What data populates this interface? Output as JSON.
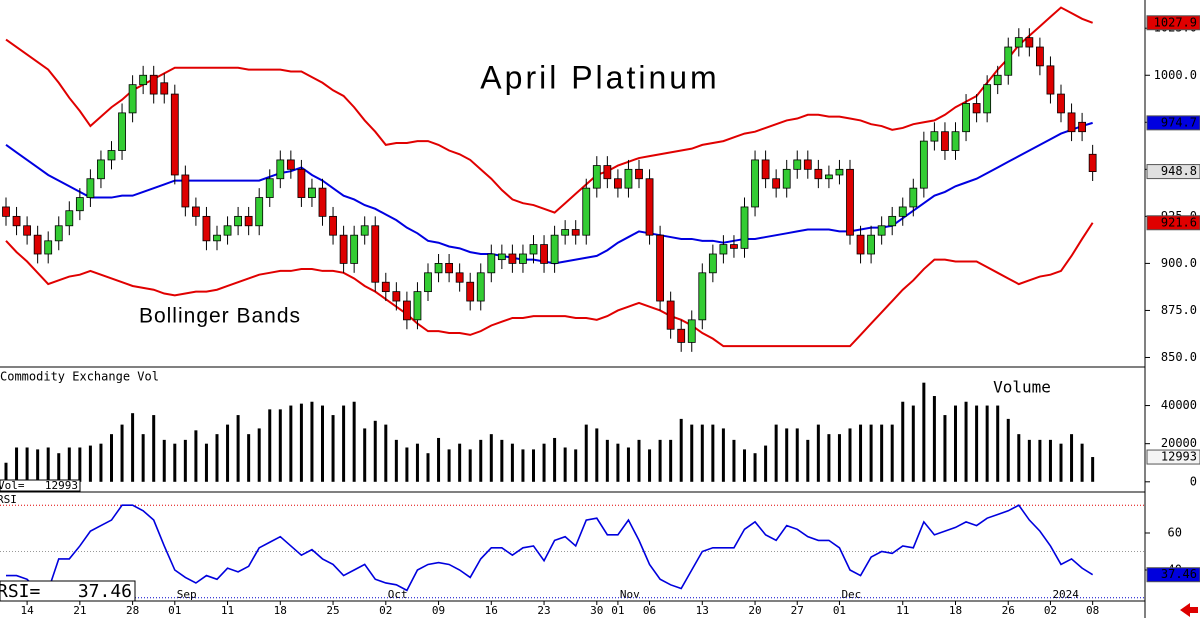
{
  "chart_data": [
    {
      "type": "candlestick",
      "title": "April Platinum",
      "annotation": "Bollinger Bands",
      "categories": [
        null,
        null,
        "14",
        null,
        null,
        null,
        null,
        "21",
        null,
        null,
        null,
        null,
        "28",
        null,
        null,
        null,
        "01",
        null,
        null,
        null,
        null,
        "11",
        null,
        null,
        null,
        null,
        "18",
        null,
        null,
        null,
        null,
        "25",
        null,
        null,
        null,
        null,
        "02",
        null,
        null,
        null,
        null,
        "09",
        null,
        null,
        null,
        null,
        "16",
        null,
        null,
        null,
        null,
        "23",
        null,
        null,
        null,
        null,
        "30",
        null,
        "01",
        null,
        null,
        "06",
        null,
        null,
        null,
        null,
        "13",
        null,
        null,
        null,
        null,
        "20",
        null,
        null,
        null,
        "27",
        null,
        null,
        null,
        "01",
        null,
        null,
        null,
        null,
        null,
        "11",
        null,
        null,
        null,
        null,
        "18",
        null,
        null,
        null,
        null,
        "26",
        null,
        null,
        null,
        "02",
        null,
        null,
        null,
        "08"
      ],
      "month_labels": [
        null,
        null,
        null,
        null,
        null,
        null,
        null,
        null,
        null,
        null,
        null,
        null,
        null,
        null,
        null,
        null,
        "Sep",
        null,
        null,
        null,
        null,
        null,
        null,
        null,
        null,
        null,
        null,
        null,
        null,
        null,
        null,
        null,
        null,
        null,
        null,
        null,
        "Oct",
        null,
        null,
        null,
        null,
        null,
        null,
        null,
        null,
        null,
        null,
        null,
        null,
        null,
        null,
        null,
        null,
        null,
        null,
        null,
        null,
        null,
        "Nov",
        null,
        null,
        null,
        null,
        null,
        null,
        null,
        null,
        null,
        null,
        null,
        null,
        null,
        null,
        null,
        null,
        null,
        null,
        null,
        null,
        "Dec",
        null,
        null,
        null,
        null,
        null,
        null,
        null,
        null,
        null,
        null,
        null,
        null,
        null,
        null,
        null,
        null,
        null,
        null,
        null,
        "2024",
        null,
        null,
        null,
        null
      ],
      "open": [
        930,
        925,
        920,
        915,
        905,
        912,
        920,
        928,
        935,
        945,
        955,
        960,
        980,
        995,
        1000,
        996,
        990,
        947,
        930,
        925,
        912,
        915,
        920,
        925,
        920,
        935,
        945,
        955,
        950,
        935,
        940,
        925,
        915,
        900,
        915,
        920,
        890,
        885,
        880,
        870,
        885,
        895,
        900,
        895,
        890,
        880,
        895,
        902,
        905,
        900,
        905,
        910,
        900,
        915,
        918,
        915,
        940,
        952,
        945,
        940,
        950,
        945,
        915,
        880,
        865,
        858,
        870,
        895,
        905,
        910,
        908,
        930,
        955,
        945,
        940,
        950,
        955,
        950,
        945,
        947,
        950,
        915,
        905,
        915,
        920,
        925,
        930,
        940,
        965,
        970,
        960,
        970,
        985,
        980,
        995,
        1000,
        1015,
        1020,
        1015,
        1005,
        990,
        980,
        975,
        958
      ],
      "high": [
        935,
        930,
        925,
        920,
        917,
        925,
        933,
        940,
        950,
        960,
        965,
        985,
        1000,
        1005,
        1005,
        1001,
        995,
        952,
        935,
        930,
        920,
        925,
        930,
        930,
        940,
        950,
        960,
        960,
        955,
        945,
        945,
        930,
        920,
        920,
        925,
        925,
        895,
        890,
        885,
        890,
        900,
        905,
        905,
        900,
        895,
        900,
        910,
        910,
        910,
        910,
        915,
        915,
        920,
        923,
        923,
        945,
        957,
        957,
        950,
        955,
        955,
        950,
        920,
        885,
        870,
        875,
        900,
        910,
        915,
        915,
        935,
        960,
        960,
        950,
        955,
        960,
        960,
        955,
        952,
        955,
        955,
        920,
        920,
        925,
        930,
        935,
        945,
        970,
        975,
        975,
        975,
        990,
        990,
        1000,
        1005,
        1020,
        1025,
        1025,
        1020,
        1010,
        995,
        985,
        980,
        963
      ],
      "low": [
        920,
        915,
        910,
        900,
        900,
        907,
        915,
        923,
        930,
        940,
        950,
        955,
        975,
        990,
        985,
        985,
        942,
        925,
        920,
        907,
        907,
        910,
        915,
        915,
        915,
        930,
        940,
        945,
        930,
        930,
        920,
        910,
        895,
        895,
        910,
        885,
        880,
        875,
        865,
        865,
        880,
        890,
        890,
        885,
        875,
        875,
        890,
        897,
        895,
        895,
        900,
        895,
        895,
        910,
        910,
        910,
        935,
        940,
        935,
        935,
        940,
        910,
        875,
        860,
        853,
        853,
        865,
        890,
        900,
        903,
        903,
        925,
        940,
        935,
        935,
        945,
        945,
        940,
        940,
        942,
        910,
        900,
        900,
        910,
        915,
        920,
        925,
        935,
        960,
        955,
        955,
        965,
        975,
        975,
        990,
        995,
        1010,
        1010,
        1000,
        985,
        975,
        965,
        965,
        943.8
      ],
      "close": [
        925,
        920,
        915,
        905,
        912,
        920,
        928,
        935,
        945,
        955,
        960,
        980,
        995,
        1000,
        990,
        990,
        947,
        930,
        925,
        912,
        915,
        920,
        925,
        920,
        935,
        945,
        955,
        950,
        935,
        940,
        925,
        915,
        900,
        915,
        920,
        890,
        885,
        880,
        870,
        885,
        895,
        900,
        895,
        890,
        880,
        895,
        905,
        905,
        900,
        905,
        910,
        900,
        915,
        918,
        915,
        940,
        952,
        945,
        940,
        950,
        945,
        915,
        880,
        865,
        858,
        870,
        895,
        905,
        910,
        908,
        930,
        955,
        945,
        940,
        950,
        955,
        950,
        945,
        947,
        950,
        915,
        905,
        915,
        920,
        925,
        930,
        940,
        965,
        970,
        960,
        970,
        985,
        980,
        995,
        1000,
        1015,
        1020,
        1015,
        1005,
        990,
        980,
        970,
        970,
        948.8
      ],
      "up_color": "#33cc33",
      "down_color": "#dd0000",
      "close_box_color": "#e0e0e0",
      "bands": [
        {
          "color": "#e00000",
          "values": [
            1019,
            1015,
            1011,
            1007,
            1003,
            996,
            988,
            981,
            973,
            978,
            983,
            987,
            992,
            995,
            998,
            1001,
            1004,
            1004,
            1004,
            1004,
            1004,
            1004,
            1004,
            1003,
            1003,
            1003,
            1003,
            1002,
            1002,
            999,
            996,
            992,
            989,
            983,
            976,
            970,
            963,
            964,
            964,
            965,
            965,
            963,
            960,
            958,
            955,
            950,
            945,
            939,
            934,
            932,
            931,
            929,
            927,
            932,
            937,
            942,
            947,
            949,
            952,
            954,
            956,
            957,
            958,
            959,
            960,
            961,
            963,
            964,
            965,
            967,
            969,
            970,
            972,
            974,
            976,
            977,
            979,
            979,
            978,
            978,
            977,
            976,
            974,
            973,
            971,
            972,
            974,
            975,
            976,
            979,
            983,
            986,
            989,
            996,
            1003,
            1009,
            1016,
            1021,
            1026,
            1031,
            1036,
            1033,
            1030,
            1027.9
          ]
        },
        {
          "color": "#0000e0",
          "values": [
            963,
            959,
            955,
            951,
            947,
            944,
            941,
            938,
            935,
            935,
            935,
            936,
            936,
            938,
            940,
            942,
            944,
            944,
            944,
            944,
            944,
            944,
            944,
            944,
            944,
            946,
            948,
            949,
            951,
            947,
            944,
            940,
            936,
            934,
            931,
            929,
            926,
            923,
            919,
            916,
            912,
            911,
            909,
            908,
            906,
            905,
            905,
            904,
            903,
            902,
            902,
            901,
            900,
            901,
            902,
            903,
            904,
            907,
            911,
            914,
            917,
            916,
            915,
            914,
            913,
            913,
            912,
            912,
            911,
            912,
            913,
            913,
            914,
            915,
            916,
            917,
            918,
            918,
            918,
            917,
            917,
            918,
            919,
            919,
            920,
            924,
            928,
            932,
            936,
            938,
            941,
            943,
            945,
            948,
            951,
            954,
            957,
            960,
            963,
            966,
            969,
            971,
            973,
            974.7
          ]
        },
        {
          "color": "#e00000",
          "values": [
            912,
            906,
            901,
            895,
            889,
            891,
            893,
            894,
            896,
            894,
            892,
            890,
            888,
            887,
            886,
            884,
            883,
            884,
            885,
            885,
            886,
            888,
            890,
            892,
            894,
            895,
            896,
            896,
            897,
            897,
            896,
            896,
            895,
            892,
            888,
            885,
            881,
            877,
            873,
            868,
            864,
            864,
            863,
            863,
            862,
            864,
            867,
            869,
            871,
            871,
            872,
            872,
            872,
            872,
            871,
            871,
            870,
            872,
            875,
            877,
            879,
            877,
            875,
            872,
            870,
            867,
            863,
            860,
            856,
            856,
            856,
            856,
            856,
            856,
            856,
            856,
            856,
            856,
            856,
            856,
            856,
            862,
            868,
            874,
            880,
            886,
            891,
            897,
            902,
            902,
            901,
            901,
            901,
            898,
            895,
            892,
            889,
            891,
            893,
            894,
            896,
            904,
            913,
            921.6
          ]
        }
      ],
      "ylim": [
        846,
        1040
      ],
      "yticks": [
        {
          "value": 850,
          "label": "850.0"
        },
        {
          "value": 875,
          "label": "875.0"
        },
        {
          "value": 900,
          "label": "900.0"
        },
        {
          "value": 925,
          "label": "925.0"
        },
        {
          "value": 950,
          "label": "950.0"
        },
        {
          "value": 975,
          "label": "975.0"
        },
        {
          "value": 1000,
          "label": "1000.0"
        },
        {
          "value": 1025,
          "label": "1025.0"
        }
      ]
    },
    {
      "type": "bar",
      "title": "Commodity Exchange Vol",
      "annotation": "Volume",
      "readout_label": "Vol=",
      "color": "#000000",
      "values": [
        10000,
        18000,
        18000,
        17000,
        18000,
        15000,
        18000,
        18000,
        19000,
        20000,
        25000,
        30000,
        36000,
        25000,
        35000,
        22000,
        20000,
        22000,
        27000,
        20000,
        25000,
        30000,
        35000,
        25000,
        28000,
        38000,
        38000,
        40000,
        41000,
        42000,
        40000,
        35000,
        40000,
        42000,
        28000,
        32000,
        30000,
        22000,
        18000,
        20000,
        15000,
        23000,
        17000,
        20000,
        17000,
        22000,
        25000,
        22000,
        20000,
        17000,
        17000,
        20000,
        23000,
        18000,
        17000,
        30000,
        28000,
        22000,
        20000,
        18000,
        22000,
        17000,
        22000,
        22000,
        33000,
        30000,
        30000,
        30000,
        28000,
        22000,
        17000,
        15000,
        19000,
        30000,
        28000,
        28000,
        22000,
        30000,
        25000,
        25000,
        28000,
        30000,
        30000,
        30000,
        30000,
        42000,
        40000,
        52000,
        45000,
        35000,
        40000,
        42000,
        40000,
        40000,
        40000,
        33000,
        25000,
        22000,
        22000,
        22000,
        20000,
        25000,
        20000,
        12993
      ],
      "ylim": [
        -4300,
        59700
      ],
      "yticks": [
        0,
        20000,
        40000
      ]
    },
    {
      "type": "line",
      "title": "RSI",
      "readout_label": "RSI=",
      "color": "#0000dd",
      "values": [
        37,
        37,
        35,
        29,
        29,
        46,
        46,
        53,
        61,
        64,
        67,
        75,
        75,
        72,
        67,
        53,
        40,
        36,
        33,
        37,
        35,
        41,
        39,
        42,
        52,
        55,
        58,
        53,
        48,
        51,
        46,
        43,
        37,
        40,
        43,
        35,
        33,
        32,
        29,
        40,
        43,
        44,
        43,
        40,
        36,
        46,
        52,
        52,
        48,
        52,
        53,
        45,
        56,
        58,
        53,
        67,
        68,
        59,
        59,
        67,
        56,
        43,
        35,
        32,
        30,
        40,
        50,
        52,
        52,
        52,
        62,
        66,
        59,
        56,
        64,
        62,
        58,
        56,
        56,
        52,
        40,
        37,
        47,
        50,
        49,
        53,
        52,
        66,
        59,
        61,
        63,
        66,
        64,
        68,
        70,
        72,
        75,
        67,
        61,
        53,
        43,
        46,
        41,
        37.46
      ],
      "levels": [
        75,
        50,
        25
      ],
      "level_colors": [
        "#e00000",
        "#999999",
        "#0000cc"
      ],
      "ylim": [
        23.8,
        81.6
      ],
      "yticks": [
        40,
        60
      ]
    }
  ]
}
